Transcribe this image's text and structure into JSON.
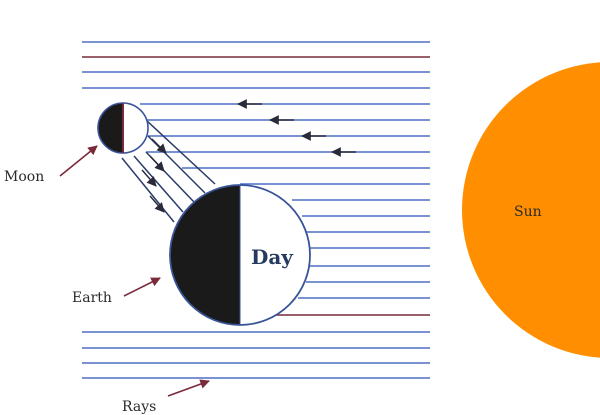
{
  "labels": {
    "moon": "Moon",
    "earth": "Earth",
    "day": "Day",
    "sun": "Sun",
    "rays": "Rays"
  },
  "colors": {
    "ray_blue": "#4d6fc4",
    "ray_dark": "#7a2a3a",
    "sun": "#ff8f00",
    "dark_side": "#1a1a1a",
    "outline": "#3a5499",
    "pointer": "#7a2a3a"
  }
}
